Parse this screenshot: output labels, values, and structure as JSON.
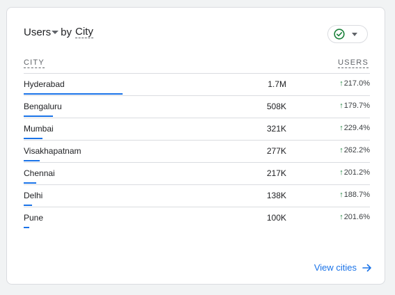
{
  "card": {
    "title_metric": "Users",
    "title_by": "by",
    "title_dimension": "City"
  },
  "table": {
    "col_city": "CITY",
    "col_users": "USERS",
    "rows": [
      {
        "city": "Hyderabad",
        "users": "1.7M",
        "change": "217.0%",
        "bar_fraction": 1.0
      },
      {
        "city": "Bengaluru",
        "users": "508K",
        "change": "179.7%",
        "bar_fraction": 0.299
      },
      {
        "city": "Mumbai",
        "users": "321K",
        "change": "229.4%",
        "bar_fraction": 0.189
      },
      {
        "city": "Visakhapatnam",
        "users": "277K",
        "change": "262.2%",
        "bar_fraction": 0.163
      },
      {
        "city": "Chennai",
        "users": "217K",
        "change": "201.2%",
        "bar_fraction": 0.128
      },
      {
        "city": "Delhi",
        "users": "138K",
        "change": "188.7%",
        "bar_fraction": 0.081
      },
      {
        "city": "Pune",
        "users": "100K",
        "change": "201.6%",
        "bar_fraction": 0.059
      }
    ]
  },
  "footer": {
    "view_label": "View cities"
  },
  "icons": {
    "status": "check-circle-icon",
    "status_dropdown": "chevron-down-icon",
    "trend": "arrow-up-icon",
    "view": "arrow-right-icon"
  },
  "colors": {
    "accent": "#1a73e8",
    "positive": "#188038",
    "status_check": "#188038"
  }
}
